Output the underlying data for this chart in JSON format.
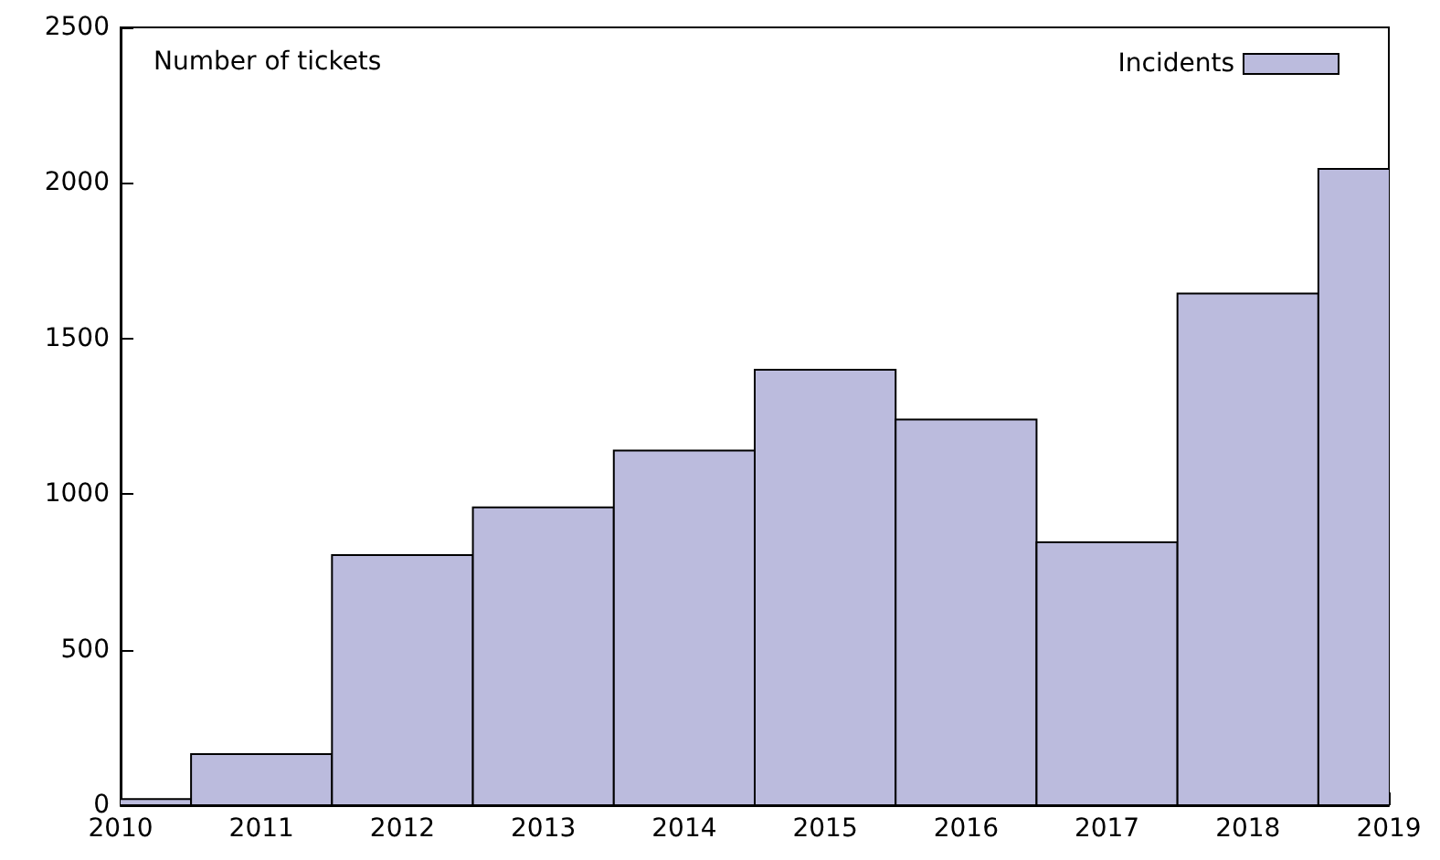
{
  "chart_data": {
    "type": "bar",
    "annotations": [
      "Number of tickets"
    ],
    "x": [
      2010,
      2011,
      2012,
      2013,
      2014,
      2015,
      2016,
      2017,
      2018,
      2019
    ],
    "series": [
      {
        "name": "Incidents",
        "color": "#bbbbdd",
        "values": [
          20,
          164,
          804,
          957,
          1140,
          1400,
          1240,
          845,
          1645,
          2045
        ]
      }
    ],
    "xlim": [
      2010,
      2019
    ],
    "xticks": [
      2010,
      2011,
      2012,
      2013,
      2014,
      2015,
      2016,
      2017,
      2018,
      2019
    ],
    "ylim": [
      0,
      2500
    ],
    "yticks": [
      0,
      500,
      1000,
      1500,
      2000,
      2500
    ],
    "grid": false,
    "legend": "top right"
  }
}
